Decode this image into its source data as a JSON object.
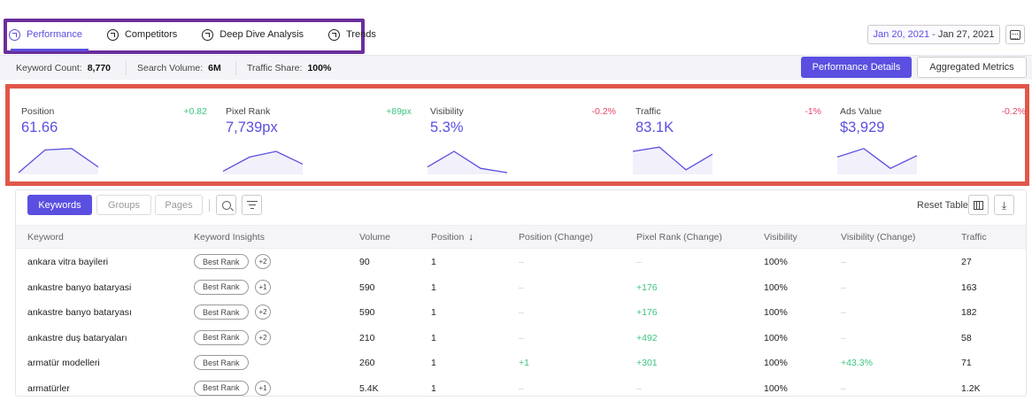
{
  "tabs": [
    {
      "label": "Performance",
      "icon": "gauge-icon"
    },
    {
      "label": "Competitors",
      "icon": "pie-chart-icon"
    },
    {
      "label": "Deep Dive Analysis",
      "icon": "magnifier-analysis-icon"
    },
    {
      "label": "Trends",
      "icon": "trend-icon"
    }
  ],
  "daterange": {
    "start": "Jan 20, 2021",
    "sep": "-",
    "end": "Jan 27, 2021"
  },
  "stats": [
    {
      "label": "Keyword Count:",
      "value": "8,770"
    },
    {
      "label": "Search Volume:",
      "value": "6M"
    },
    {
      "label": "Traffic Share:",
      "value": "100%"
    }
  ],
  "buttons": {
    "performance_details": "Performance Details",
    "aggregated_metrics": "Aggregated Metrics"
  },
  "metrics": [
    {
      "name": "Position",
      "value": "61.66",
      "change": "+0.82",
      "trend": "pos",
      "spark": [
        0.0,
        0.8,
        0.85,
        0.2
      ]
    },
    {
      "name": "Pixel Rank",
      "value": "7,739px",
      "change": "+89px",
      "trend": "pos",
      "spark": [
        0.05,
        0.55,
        0.75,
        0.3
      ]
    },
    {
      "name": "Visibility",
      "value": "5.3%",
      "change": "-0.2%",
      "trend": "neg",
      "spark": [
        0.2,
        0.75,
        0.15,
        0.0
      ]
    },
    {
      "name": "Traffic",
      "value": "83.1K",
      "change": "-1%",
      "trend": "neg",
      "spark": [
        0.75,
        0.9,
        0.1,
        0.65
      ]
    },
    {
      "name": "Ads Value",
      "value": "$3,929",
      "change": "-0.2%",
      "trend": "neg",
      "spark": [
        0.55,
        0.85,
        0.15,
        0.6
      ]
    }
  ],
  "table_controls": {
    "segments": [
      "Keywords",
      "Groups",
      "Pages"
    ],
    "reset_label": "Reset Table"
  },
  "columns": [
    "Keyword",
    "Keyword Insights",
    "Volume",
    "Position",
    "Position (Change)",
    "Pixel Rank (Change)",
    "Visibility",
    "Visibility (Change)",
    "Traffic"
  ],
  "rows": [
    {
      "keyword": "ankara vitra bayileri",
      "badge": "Best Rank",
      "plus": "+2",
      "volume": "90",
      "position": "1",
      "pos_change": "–",
      "pixel_change": "–",
      "visibility": "100%",
      "vis_change": "–",
      "traffic": "27"
    },
    {
      "keyword": "ankastre banyo bataryasi",
      "badge": "Best Rank",
      "plus": "+1",
      "volume": "590",
      "position": "1",
      "pos_change": "–",
      "pixel_change": "+176",
      "visibility": "100%",
      "vis_change": "–",
      "traffic": "163"
    },
    {
      "keyword": "ankastre banyo bataryası",
      "badge": "Best Rank",
      "plus": "+2",
      "volume": "590",
      "position": "1",
      "pos_change": "–",
      "pixel_change": "+176",
      "visibility": "100%",
      "vis_change": "–",
      "traffic": "182"
    },
    {
      "keyword": "ankastre duş bataryaları",
      "badge": "Best Rank",
      "plus": "+2",
      "volume": "210",
      "position": "1",
      "pos_change": "–",
      "pixel_change": "+492",
      "visibility": "100%",
      "vis_change": "–",
      "traffic": "58"
    },
    {
      "keyword": "armatür modelleri",
      "badge": "Best Rank",
      "plus": "",
      "volume": "260",
      "position": "1",
      "pos_change": "+1",
      "pixel_change": "+301",
      "visibility": "100%",
      "vis_change": "+43.3%",
      "traffic": "71"
    },
    {
      "keyword": "armatürler",
      "badge": "Best Rank",
      "plus": "+1",
      "volume": "5.4K",
      "position": "1",
      "pos_change": "–",
      "pixel_change": "–",
      "visibility": "100%",
      "vis_change": "–",
      "traffic": "1.2K"
    }
  ],
  "colors": {
    "accent": "#5a4fe0",
    "positive": "#3bc47f",
    "negative": "#e8436a",
    "tabs_highlight": "#6a2e9c",
    "metrics_highlight": "#e0564a"
  }
}
